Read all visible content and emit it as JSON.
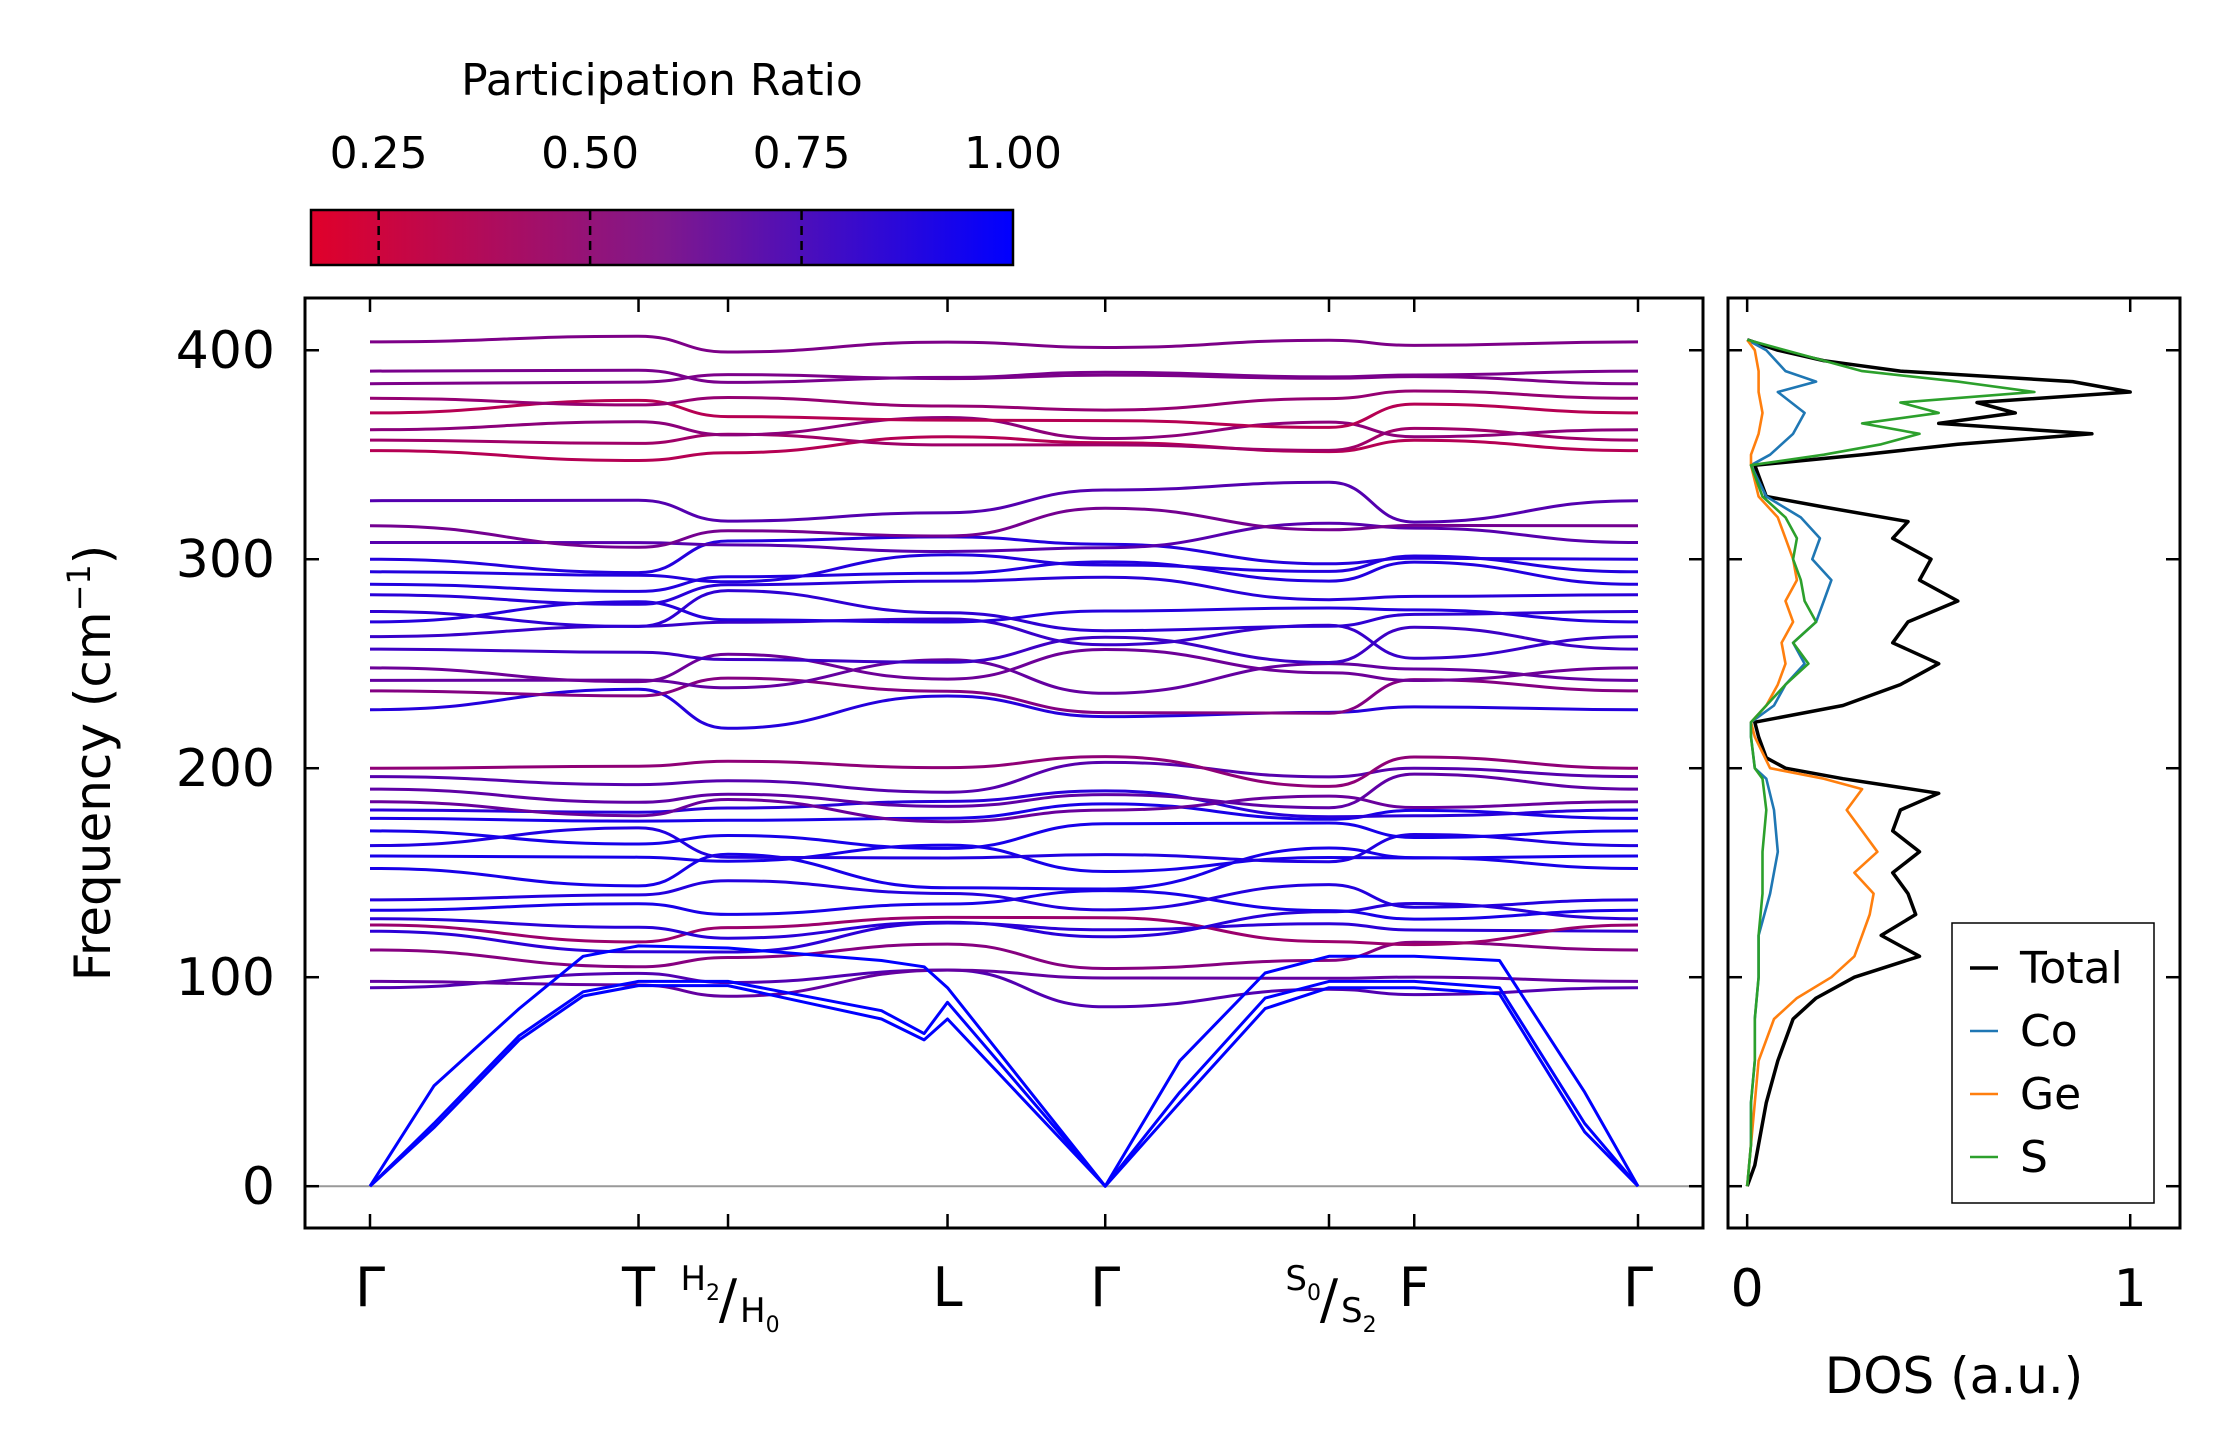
{
  "chart_data": [
    {
      "type": "line",
      "title": "",
      "xlabel": "",
      "ylabel": "Frequency (cm",
      "ylabel_sup": "−1",
      "ylabel_close": ")",
      "ylim": [
        -20,
        425
      ],
      "yticks": [
        "0",
        "100",
        "200",
        "300",
        "400"
      ],
      "ytick_values": [
        0,
        100,
        200,
        300,
        400
      ],
      "path_positions": [
        0,
        1.26,
        1.68,
        2.71,
        3.45,
        4.5,
        4.9,
        5.95
      ],
      "x_tick_labels": [
        {
          "main": "Γ"
        },
        {
          "main": "T"
        },
        {
          "top": "H",
          "top_sub": "2",
          "sep": "/",
          "bot": "H",
          "bot_sub": "0"
        },
        {
          "main": "L"
        },
        {
          "main": "Γ"
        },
        {
          "top": "S",
          "top_sub": "0",
          "sep": "/",
          "bot": "S",
          "bot_sub": "2"
        },
        {
          "main": "F"
        },
        {
          "main": "Γ"
        }
      ],
      "bands": {
        "acoustic": [
          {
            "x": [
              0,
              0.3,
              0.7,
              1.0,
              1.26,
              1.68,
              2.4,
              2.6,
              2.71,
              3.45,
              3.8,
              4.2,
              4.5,
              4.9,
              5.3,
              5.7,
              5.95
            ],
            "y": [
              0,
              48,
              85,
              110,
              115,
              114,
              108,
              105,
              95,
              0,
              60,
              102,
              110,
              110,
              108,
              45,
              0
            ]
          },
          {
            "x": [
              0,
              0.3,
              0.7,
              1.0,
              1.26,
              1.68,
              2.4,
              2.6,
              2.71,
              3.45,
              3.8,
              4.2,
              4.5,
              4.9,
              5.3,
              5.7,
              5.95
            ],
            "y": [
              0,
              30,
              72,
              93,
              98,
              98,
              84,
              73,
              88,
              0,
              45,
              90,
              98,
              98,
              95,
              30,
              0
            ]
          },
          {
            "x": [
              0,
              0.3,
              0.7,
              1.0,
              1.26,
              1.68,
              2.4,
              2.6,
              2.71,
              3.45,
              3.8,
              4.2,
              4.5,
              4.9,
              5.3,
              5.7,
              5.95
            ],
            "y": [
              0,
              28,
              70,
              91,
              96,
              96,
              80,
              70,
              80,
              0,
              40,
              85,
              95,
              95,
              92,
              26,
              0
            ]
          }
        ],
        "optical_frequencies": [
          95,
          98,
          113,
          122,
          125,
          128,
          132,
          137,
          152,
          158,
          163,
          170,
          176,
          180,
          184,
          190,
          196,
          200,
          228,
          237,
          242,
          248,
          257,
          263,
          270,
          275,
          283,
          288,
          294,
          300,
          308,
          316,
          328,
          352,
          357,
          362,
          370,
          377,
          384,
          390,
          404
        ],
        "color_scale": "participation_ratio",
        "color_min": "#e0002a",
        "color_max": "#0000ff"
      },
      "zero_line": 0
    },
    {
      "type": "line",
      "xlabel": "DOS (a.u.)",
      "xticks": [
        "0",
        "1"
      ],
      "xtick_values": [
        0,
        1
      ],
      "xlim": [
        -0.05,
        1.13
      ],
      "ylim": [
        -20,
        425
      ],
      "legend": {
        "placement": "lower-right",
        "entries": [
          "Total",
          "Co",
          "Ge",
          "S"
        ]
      },
      "series": [
        {
          "name": "Total",
          "color": "#000000",
          "y": [
            0,
            10,
            20,
            40,
            60,
            80,
            90,
            100,
            110,
            120,
            130,
            140,
            150,
            160,
            170,
            180,
            188,
            195,
            200,
            205,
            215,
            222,
            230,
            240,
            250,
            260,
            270,
            280,
            290,
            300,
            310,
            318,
            325,
            330,
            340,
            345,
            350,
            355,
            360,
            365,
            370,
            375,
            380,
            385,
            390,
            395,
            400,
            405
          ],
          "v": [
            0,
            0.02,
            0.03,
            0.05,
            0.08,
            0.12,
            0.18,
            0.28,
            0.45,
            0.35,
            0.44,
            0.42,
            0.38,
            0.45,
            0.38,
            0.4,
            0.5,
            0.25,
            0.1,
            0.05,
            0.03,
            0.02,
            0.25,
            0.4,
            0.5,
            0.38,
            0.42,
            0.55,
            0.45,
            0.48,
            0.38,
            0.42,
            0.2,
            0.05,
            0.03,
            0.02,
            0.3,
            0.55,
            0.9,
            0.5,
            0.7,
            0.6,
            1.0,
            0.85,
            0.4,
            0.2,
            0.08,
            0.0
          ]
        },
        {
          "name": "Co",
          "color": "#1f77b4",
          "y": [
            0,
            20,
            40,
            60,
            80,
            100,
            120,
            140,
            160,
            180,
            195,
            200,
            215,
            222,
            230,
            240,
            250,
            260,
            270,
            280,
            290,
            300,
            310,
            320,
            330,
            345,
            350,
            360,
            370,
            380,
            385,
            390,
            400,
            405
          ],
          "v": [
            0,
            0.01,
            0.01,
            0.02,
            0.02,
            0.03,
            0.03,
            0.06,
            0.08,
            0.07,
            0.05,
            0.02,
            0.01,
            0.01,
            0.07,
            0.1,
            0.15,
            0.12,
            0.18,
            0.2,
            0.22,
            0.17,
            0.19,
            0.14,
            0.05,
            0.01,
            0.06,
            0.12,
            0.15,
            0.08,
            0.18,
            0.1,
            0.05,
            0.0
          ]
        },
        {
          "name": "Ge",
          "color": "#ff7f0e",
          "y": [
            0,
            20,
            40,
            60,
            80,
            90,
            100,
            110,
            120,
            130,
            140,
            150,
            160,
            170,
            180,
            190,
            195,
            200,
            215,
            222,
            230,
            240,
            250,
            260,
            270,
            280,
            290,
            300,
            310,
            320,
            330,
            345,
            350,
            360,
            370,
            380,
            390,
            400,
            405
          ],
          "v": [
            0,
            0.01,
            0.02,
            0.03,
            0.07,
            0.13,
            0.22,
            0.28,
            0.3,
            0.32,
            0.33,
            0.28,
            0.34,
            0.3,
            0.26,
            0.3,
            0.2,
            0.06,
            0.02,
            0.01,
            0.05,
            0.08,
            0.1,
            0.09,
            0.12,
            0.1,
            0.13,
            0.12,
            0.1,
            0.08,
            0.03,
            0.01,
            0.01,
            0.03,
            0.04,
            0.03,
            0.03,
            0.02,
            0.0
          ]
        },
        {
          "name": "S",
          "color": "#2ca02c",
          "y": [
            0,
            20,
            40,
            60,
            80,
            100,
            120,
            140,
            160,
            180,
            195,
            200,
            215,
            222,
            230,
            240,
            250,
            260,
            270,
            280,
            290,
            300,
            310,
            320,
            330,
            345,
            350,
            355,
            360,
            365,
            370,
            375,
            380,
            385,
            390,
            400,
            405
          ],
          "v": [
            0,
            0.01,
            0.01,
            0.02,
            0.02,
            0.03,
            0.03,
            0.04,
            0.04,
            0.05,
            0.04,
            0.02,
            0.01,
            0.01,
            0.05,
            0.1,
            0.16,
            0.12,
            0.18,
            0.15,
            0.14,
            0.12,
            0.13,
            0.1,
            0.04,
            0.01,
            0.2,
            0.35,
            0.45,
            0.3,
            0.5,
            0.4,
            0.75,
            0.55,
            0.3,
            0.1,
            0.0
          ]
        }
      ]
    }
  ],
  "colorbar": {
    "title": "Participation Ratio",
    "ticks": [
      "0.25",
      "0.50",
      "0.75",
      "1.00"
    ],
    "tick_values": [
      0.25,
      0.5,
      0.75,
      1.0
    ],
    "range": [
      0.17,
      1.0
    ],
    "color_low": "#e0002a",
    "color_high": "#0000ff"
  }
}
